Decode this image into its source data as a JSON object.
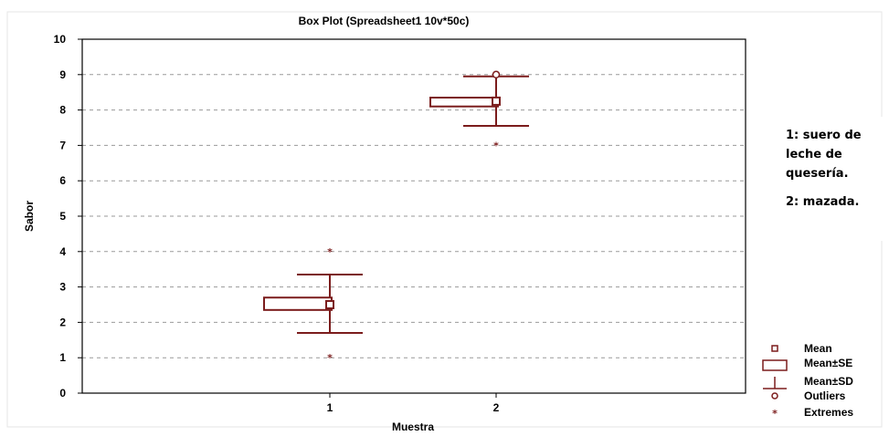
{
  "chart_data": {
    "type": "box",
    "title": "Box Plot (Spreadsheet1 10v*50c)",
    "xlabel": "Muestra",
    "ylabel": "Sabor",
    "ylim": [
      0,
      10
    ],
    "yticks": [
      "0",
      "1",
      "2",
      "3",
      "4",
      "5",
      "6",
      "7",
      "8",
      "9",
      "10"
    ],
    "categories": [
      "1",
      "2"
    ],
    "grid": "horizontal-dashed",
    "box_color": "#7b1c1c",
    "groups": [
      {
        "category": "1",
        "mean": 2.5,
        "se_low": 2.35,
        "se_high": 2.7,
        "sd_low": 1.7,
        "sd_high": 3.35,
        "outliers": [],
        "extremes": [
          1,
          4
        ]
      },
      {
        "category": "2",
        "mean": 8.25,
        "se_low": 8.1,
        "se_high": 8.35,
        "sd_low": 7.55,
        "sd_high": 8.95,
        "outliers": [
          9
        ],
        "extremes": [
          7
        ]
      }
    ],
    "legend": [
      {
        "label": "Mean",
        "marker": "square"
      },
      {
        "label": "Mean±SE",
        "marker": "box"
      },
      {
        "label": "Mean±SD",
        "marker": "whisker"
      },
      {
        "label": "Outliers",
        "marker": "circle"
      },
      {
        "label": "Extremes",
        "marker": "star"
      }
    ],
    "legend_position": "bottom-right, outside plot"
  },
  "note": {
    "line1": [
      "1: suero de",
      "leche de",
      "quesería."
    ],
    "line2": [
      "2: mazada."
    ]
  }
}
